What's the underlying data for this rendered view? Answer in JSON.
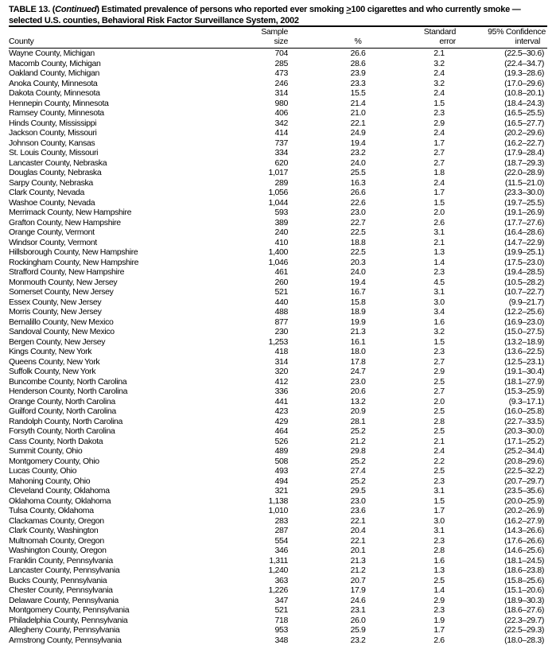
{
  "title": {
    "prefix": "TABLE 13. (",
    "continued": "Continued",
    "mid": ") Estimated prevalence of persons who reported ever smoking ",
    "ge": ">",
    "rest": "100 cigarettes and who currently smoke —",
    "line2": "selected U.S. counties, Behavioral Risk Factor Surveillance System, 2002"
  },
  "headers": {
    "county": "County",
    "sample_1": "Sample",
    "sample_2": "size",
    "pct": "%",
    "se_1": "Standard",
    "se_2": "error",
    "ci_1": "95% Confidence",
    "ci_2": "interval"
  },
  "rows": [
    [
      "Wayne County, Michigan",
      "704",
      "26.6",
      "2.1",
      "(22.5–30.6)"
    ],
    [
      "Macomb County, Michigan",
      "285",
      "28.6",
      "3.2",
      "(22.4–34.7)"
    ],
    [
      "Oakland County, Michigan",
      "473",
      "23.9",
      "2.4",
      "(19.3–28.6)"
    ],
    [
      "Anoka County, Minnesota",
      "246",
      "23.3",
      "3.2",
      "(17.0–29.6)"
    ],
    [
      "Dakota County, Minnesota",
      "314",
      "15.5",
      "2.4",
      "(10.8–20.1)"
    ],
    [
      "Hennepin County, Minnesota",
      "980",
      "21.4",
      "1.5",
      "(18.4–24.3)"
    ],
    [
      "Ramsey County, Minnesota",
      "406",
      "21.0",
      "2.3",
      "(16.5–25.5)"
    ],
    [
      "Hinds County, Mississippi",
      "342",
      "22.1",
      "2.9",
      "(16.5–27.7)"
    ],
    [
      "Jackson County, Missouri",
      "414",
      "24.9",
      "2.4",
      "(20.2–29.6)"
    ],
    [
      "Johnson County, Kansas",
      "737",
      "19.4",
      "1.7",
      "(16.2–22.7)"
    ],
    [
      "St. Louis County, Missouri",
      "334",
      "23.2",
      "2.7",
      "(17.9–28.4)"
    ],
    [
      "Lancaster County, Nebraska",
      "620",
      "24.0",
      "2.7",
      "(18.7–29.3)"
    ],
    [
      "Douglas County, Nebraska",
      "1,017",
      "25.5",
      "1.8",
      "(22.0–28.9)"
    ],
    [
      "Sarpy County, Nebraska",
      "289",
      "16.3",
      "2.4",
      "(11.5–21.0)"
    ],
    [
      "Clark County, Nevada",
      "1,056",
      "26.6",
      "1.7",
      "(23.3–30.0)"
    ],
    [
      "Washoe County, Nevada",
      "1,044",
      "22.6",
      "1.5",
      "(19.7–25.5)"
    ],
    [
      "Merrimack County, New Hampshire",
      "593",
      "23.0",
      "2.0",
      "(19.1–26.9)"
    ],
    [
      "Grafton County, New Hampshire",
      "389",
      "22.7",
      "2.6",
      "(17.7–27.6)"
    ],
    [
      "Orange County, Vermont",
      "240",
      "22.5",
      "3.1",
      "(16.4–28.6)"
    ],
    [
      "Windsor County, Vermont",
      "410",
      "18.8",
      "2.1",
      "(14.7–22.9)"
    ],
    [
      "Hillsborough County, New Hampshire",
      "1,400",
      "22.5",
      "1.3",
      "(19.9–25.1)"
    ],
    [
      "Rockingham County, New Hampshire",
      "1,046",
      "20.3",
      "1.4",
      "(17.5–23.0)"
    ],
    [
      "Strafford County, New Hampshire",
      "461",
      "24.0",
      "2.3",
      "(19.4–28.5)"
    ],
    [
      "Monmouth County, New Jersey",
      "260",
      "19.4",
      "4.5",
      "(10.5–28.2)"
    ],
    [
      "Somerset County, New Jersey",
      "521",
      "16.7",
      "3.1",
      "(10.7–22.7)"
    ],
    [
      "Essex County, New Jersey",
      "440",
      "15.8",
      "3.0",
      "(9.9–21.7)"
    ],
    [
      "Morris County, New Jersey",
      "488",
      "18.9",
      "3.4",
      "(12.2–25.6)"
    ],
    [
      "Bernalillo County, New Mexico",
      "877",
      "19.9",
      "1.6",
      "(16.9–23.0)"
    ],
    [
      "Sandoval County, New Mexico",
      "230",
      "21.3",
      "3.2",
      "(15.0–27.5)"
    ],
    [
      "Bergen County, New Jersey",
      "1,253",
      "16.1",
      "1.5",
      "(13.2–18.9)"
    ],
    [
      "Kings County, New York",
      "418",
      "18.0",
      "2.3",
      "(13.6–22.5)"
    ],
    [
      "Queens County, New York",
      "314",
      "17.8",
      "2.7",
      "(12.5–23.1)"
    ],
    [
      "Suffolk County, New York",
      "320",
      "24.7",
      "2.9",
      "(19.1–30.4)"
    ],
    [
      "Buncombe County, North Carolina",
      "412",
      "23.0",
      "2.5",
      "(18.1–27.9)"
    ],
    [
      "Henderson County, North Carolina",
      "336",
      "20.6",
      "2.7",
      "(15.3–25.9)"
    ],
    [
      "Orange County, North Carolina",
      "441",
      "13.2",
      "2.0",
      "(9.3–17.1)"
    ],
    [
      "Guilford County, North Carolina",
      "423",
      "20.9",
      "2.5",
      "(16.0–25.8)"
    ],
    [
      "Randolph County, North Carolina",
      "429",
      "28.1",
      "2.8",
      "(22.7–33.5)"
    ],
    [
      "Forsyth County, North Carolina",
      "464",
      "25.2",
      "2.5",
      "(20.3–30.0)"
    ],
    [
      "Cass County, North Dakota",
      "526",
      "21.2",
      "2.1",
      "(17.1–25.2)"
    ],
    [
      "Summit County, Ohio",
      "489",
      "29.8",
      "2.4",
      "(25.2–34.4)"
    ],
    [
      "Montgomery County, Ohio",
      "508",
      "25.2",
      "2.2",
      "(20.8–29.6)"
    ],
    [
      "Lucas County, Ohio",
      "493",
      "27.4",
      "2.5",
      "(22.5–32.2)"
    ],
    [
      "Mahoning County, Ohio",
      "494",
      "25.2",
      "2.3",
      "(20.7–29.7)"
    ],
    [
      "Cleveland County, Oklahoma",
      "321",
      "29.5",
      "3.1",
      "(23.5–35.6)"
    ],
    [
      "Oklahoma County, Oklahoma",
      "1,138",
      "23.0",
      "1.5",
      "(20.0–25.9)"
    ],
    [
      "Tulsa County, Oklahoma",
      "1,010",
      "23.6",
      "1.7",
      "(20.2–26.9)"
    ],
    [
      "Clackamas County, Oregon",
      "283",
      "22.1",
      "3.0",
      "(16.2–27.9)"
    ],
    [
      "Clark County, Washington",
      "287",
      "20.4",
      "3.1",
      "(14.3–26.6)"
    ],
    [
      "Multnomah County, Oregon",
      "554",
      "22.1",
      "2.3",
      "(17.6–26.6)"
    ],
    [
      "Washington County, Oregon",
      "346",
      "20.1",
      "2.8",
      "(14.6–25.6)"
    ],
    [
      "Franklin County, Pennsylvania",
      "1,311",
      "21.3",
      "1.6",
      "(18.1–24.5)"
    ],
    [
      "Lancaster County, Pennsylvania",
      "1,240",
      "21.2",
      "1.3",
      "(18.6–23.8)"
    ],
    [
      "Bucks County, Pennsylvania",
      "363",
      "20.7",
      "2.5",
      "(15.8–25.6)"
    ],
    [
      "Chester County, Pennsylvania",
      "1,226",
      "17.9",
      "1.4",
      "(15.1–20.6)"
    ],
    [
      "Delaware County, Pennsylvania",
      "347",
      "24.6",
      "2.9",
      "(18.9–30.3)"
    ],
    [
      "Montgomery County, Pennsylvania",
      "521",
      "23.1",
      "2.3",
      "(18.6–27.6)"
    ],
    [
      "Philadelphia County, Pennsylvania",
      "718",
      "26.0",
      "1.9",
      "(22.3–29.7)"
    ],
    [
      "Allegheny County, Pennsylvania",
      "953",
      "25.9",
      "1.7",
      "(22.5–29.3)"
    ],
    [
      "Armstrong County, Pennsylvania",
      "348",
      "23.2",
      "2.6",
      "(18.0–28.3)"
    ]
  ]
}
